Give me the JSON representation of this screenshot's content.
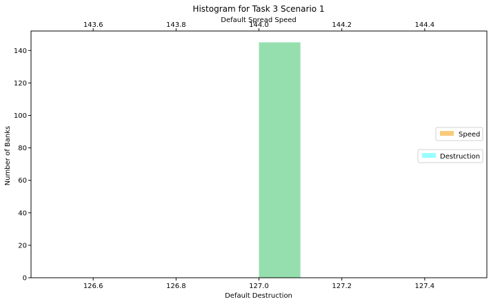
{
  "chart_data": {
    "type": "bar",
    "title": "Histogram for Task 3 Scenario 1",
    "xlabel": "Default Destruction",
    "ylabel": "Number of Banks",
    "x2label": "Default Spread Speed",
    "xlim": [
      126.45,
      127.55
    ],
    "x2lim": [
      143.45,
      144.55
    ],
    "ylim": [
      0,
      152
    ],
    "xticks": [
      "126.6",
      "126.8",
      "127.0",
      "127.2",
      "127.4"
    ],
    "x2ticks": [
      "143.6",
      "143.8",
      "144.0",
      "144.2",
      "144.4"
    ],
    "yticks": [
      "0",
      "20",
      "40",
      "60",
      "80",
      "100",
      "120",
      "140"
    ],
    "series": [
      {
        "name": "Speed",
        "axis": "top",
        "color": "#f5a623",
        "alpha": 0.6,
        "bins": [
          {
            "x0": 144.0,
            "x1": 144.1,
            "count": 145
          }
        ]
      },
      {
        "name": "Destruction",
        "axis": "bottom",
        "color": "#00ffff",
        "alpha": 0.4,
        "bins": [
          {
            "x0": 127.0,
            "x1": 127.1,
            "count": 145
          }
        ]
      }
    ],
    "legend": [
      "right",
      "right"
    ],
    "grid": false
  }
}
